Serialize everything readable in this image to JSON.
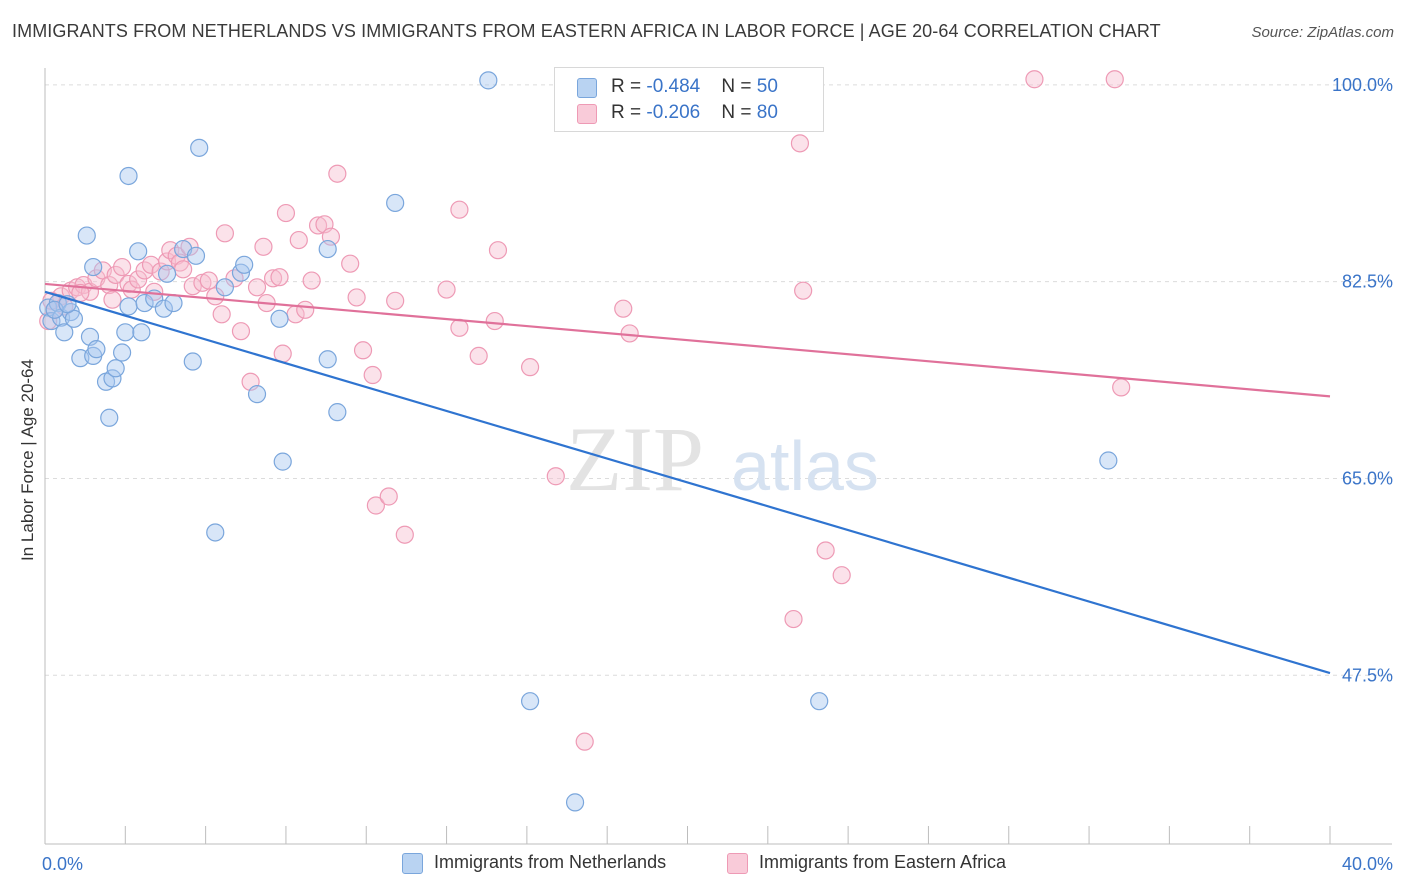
{
  "title": "IMMIGRANTS FROM NETHERLANDS VS IMMIGRANTS FROM EASTERN AFRICA IN LABOR FORCE | AGE 20-64 CORRELATION CHART",
  "source": "Source: ZipAtlas.com",
  "watermark": {
    "zip": "ZIP",
    "atlas": "atlas"
  },
  "legend_top": {
    "netherlands": {
      "r_label": "R = ",
      "r_value": "-0.484",
      "n_label": "N = ",
      "n_value": "50"
    },
    "eastern_africa": {
      "r_label": "R = ",
      "r_value": "-0.206",
      "n_label": "N = ",
      "n_value": "80"
    }
  },
  "legend_bottom": {
    "netherlands": "Immigrants from Netherlands",
    "eastern_africa": "Immigrants from Eastern Africa"
  },
  "colors": {
    "netherlands_fill": "#a9c8ef",
    "netherlands_stroke": "#7aa6dc",
    "netherlands_line": "#2f74d0",
    "eastern_africa_fill": "#f6bfd0",
    "eastern_africa_stroke": "#ee9ab5",
    "eastern_africa_line": "#e0719a",
    "tick_label": "#3a74c8"
  },
  "chart_data": {
    "type": "scatter",
    "ylabel": "In Labor Force | Age 20-64",
    "xlabel": "",
    "xlim": [
      0,
      40
    ],
    "ylim": [
      32.5,
      101.5
    ],
    "x_tick_labels": [
      {
        "value": 0,
        "label": "0.0%"
      },
      {
        "value": 40,
        "label": "40.0%"
      }
    ],
    "y_tick_labels": [
      {
        "value": 100,
        "label": "100.0%"
      },
      {
        "value": 82.5,
        "label": "82.5%"
      },
      {
        "value": 65,
        "label": "65.0%"
      },
      {
        "value": 47.5,
        "label": "47.5%"
      }
    ],
    "y_gridlines": [
      100,
      82.5,
      65,
      47.5
    ],
    "series": [
      {
        "name": "Immigrants from Netherlands",
        "key": "netherlands",
        "trend": {
          "x": [
            0,
            40
          ],
          "y": [
            81.6,
            47.7
          ]
        },
        "points": [
          [
            0.1,
            80.2
          ],
          [
            0.2,
            79.0
          ],
          [
            0.4,
            80.6
          ],
          [
            0.5,
            79.3
          ],
          [
            0.6,
            78.0
          ],
          [
            0.8,
            79.8
          ],
          [
            0.9,
            79.2
          ],
          [
            1.1,
            75.7
          ],
          [
            1.3,
            86.6
          ],
          [
            1.4,
            77.6
          ],
          [
            1.5,
            75.9
          ],
          [
            1.6,
            76.5
          ],
          [
            1.5,
            83.8
          ],
          [
            1.9,
            73.6
          ],
          [
            2.0,
            70.4
          ],
          [
            2.1,
            73.9
          ],
          [
            2.2,
            74.8
          ],
          [
            2.4,
            76.2
          ],
          [
            2.5,
            78.0
          ],
          [
            2.6,
            91.9
          ],
          [
            2.6,
            80.3
          ],
          [
            2.9,
            85.2
          ],
          [
            3.0,
            78.0
          ],
          [
            3.1,
            80.6
          ],
          [
            3.4,
            81.0
          ],
          [
            3.7,
            80.1
          ],
          [
            3.8,
            83.2
          ],
          [
            4.0,
            80.6
          ],
          [
            4.3,
            85.4
          ],
          [
            4.6,
            75.4
          ],
          [
            4.7,
            84.8
          ],
          [
            4.8,
            94.4
          ],
          [
            5.3,
            60.2
          ],
          [
            5.6,
            82.0
          ],
          [
            6.1,
            83.3
          ],
          [
            6.2,
            84.0
          ],
          [
            6.6,
            72.5
          ],
          [
            7.3,
            79.2
          ],
          [
            7.4,
            66.5
          ],
          [
            8.8,
            75.6
          ],
          [
            8.8,
            85.4
          ],
          [
            9.1,
            70.9
          ],
          [
            10.9,
            89.5
          ],
          [
            13.8,
            100.4
          ],
          [
            15.1,
            45.2
          ],
          [
            16.5,
            36.2
          ],
          [
            24.1,
            45.2
          ],
          [
            33.1,
            66.6
          ],
          [
            0.3,
            80.0
          ],
          [
            0.7,
            80.5
          ]
        ]
      },
      {
        "name": "Immigrants from Eastern Africa",
        "key": "eastern_africa",
        "trend": {
          "x": [
            0,
            40
          ],
          "y": [
            82.3,
            72.3
          ]
        },
        "points": [
          [
            0.1,
            79.0
          ],
          [
            0.3,
            80.0
          ],
          [
            0.5,
            81.2
          ],
          [
            0.8,
            81.7
          ],
          [
            1.0,
            82.0
          ],
          [
            1.2,
            82.2
          ],
          [
            1.4,
            81.6
          ],
          [
            1.6,
            82.8
          ],
          [
            1.8,
            83.5
          ],
          [
            2.0,
            82.2
          ],
          [
            2.2,
            83.1
          ],
          [
            2.4,
            83.8
          ],
          [
            2.6,
            82.3
          ],
          [
            2.7,
            81.8
          ],
          [
            2.9,
            82.7
          ],
          [
            3.1,
            83.5
          ],
          [
            3.3,
            84.0
          ],
          [
            3.4,
            81.6
          ],
          [
            3.6,
            83.4
          ],
          [
            3.8,
            84.3
          ],
          [
            3.9,
            85.3
          ],
          [
            4.1,
            84.8
          ],
          [
            4.2,
            84.2
          ],
          [
            4.3,
            83.6
          ],
          [
            4.5,
            85.6
          ],
          [
            4.6,
            82.1
          ],
          [
            4.9,
            82.4
          ],
          [
            5.1,
            82.6
          ],
          [
            5.3,
            81.2
          ],
          [
            5.5,
            79.6
          ],
          [
            5.6,
            86.8
          ],
          [
            5.9,
            82.8
          ],
          [
            6.1,
            78.1
          ],
          [
            6.4,
            73.6
          ],
          [
            6.6,
            82.0
          ],
          [
            6.8,
            85.6
          ],
          [
            6.9,
            80.6
          ],
          [
            7.1,
            82.8
          ],
          [
            7.3,
            82.9
          ],
          [
            7.4,
            76.1
          ],
          [
            7.5,
            88.6
          ],
          [
            7.8,
            79.6
          ],
          [
            7.9,
            86.2
          ],
          [
            8.1,
            80.0
          ],
          [
            8.3,
            82.6
          ],
          [
            8.5,
            87.5
          ],
          [
            8.7,
            87.6
          ],
          [
            8.9,
            86.5
          ],
          [
            9.1,
            92.1
          ],
          [
            9.5,
            84.1
          ],
          [
            9.7,
            81.1
          ],
          [
            9.9,
            76.4
          ],
          [
            10.2,
            74.2
          ],
          [
            10.3,
            62.6
          ],
          [
            10.7,
            63.4
          ],
          [
            10.9,
            80.8
          ],
          [
            11.2,
            60.0
          ],
          [
            12.5,
            81.8
          ],
          [
            12.9,
            78.4
          ],
          [
            12.9,
            88.9
          ],
          [
            13.5,
            75.9
          ],
          [
            14.1,
            85.3
          ],
          [
            14.0,
            79.0
          ],
          [
            15.1,
            74.9
          ],
          [
            15.9,
            65.2
          ],
          [
            16.8,
            41.6
          ],
          [
            18.0,
            80.1
          ],
          [
            18.2,
            77.9
          ],
          [
            23.3,
            52.5
          ],
          [
            23.5,
            94.8
          ],
          [
            23.6,
            81.7
          ],
          [
            24.3,
            58.6
          ],
          [
            24.8,
            56.4
          ],
          [
            30.8,
            100.5
          ],
          [
            33.3,
            100.5
          ],
          [
            33.5,
            73.1
          ],
          [
            0.2,
            80.8
          ],
          [
            0.6,
            80.3
          ],
          [
            1.1,
            81.5
          ],
          [
            2.1,
            80.9
          ]
        ]
      }
    ]
  }
}
